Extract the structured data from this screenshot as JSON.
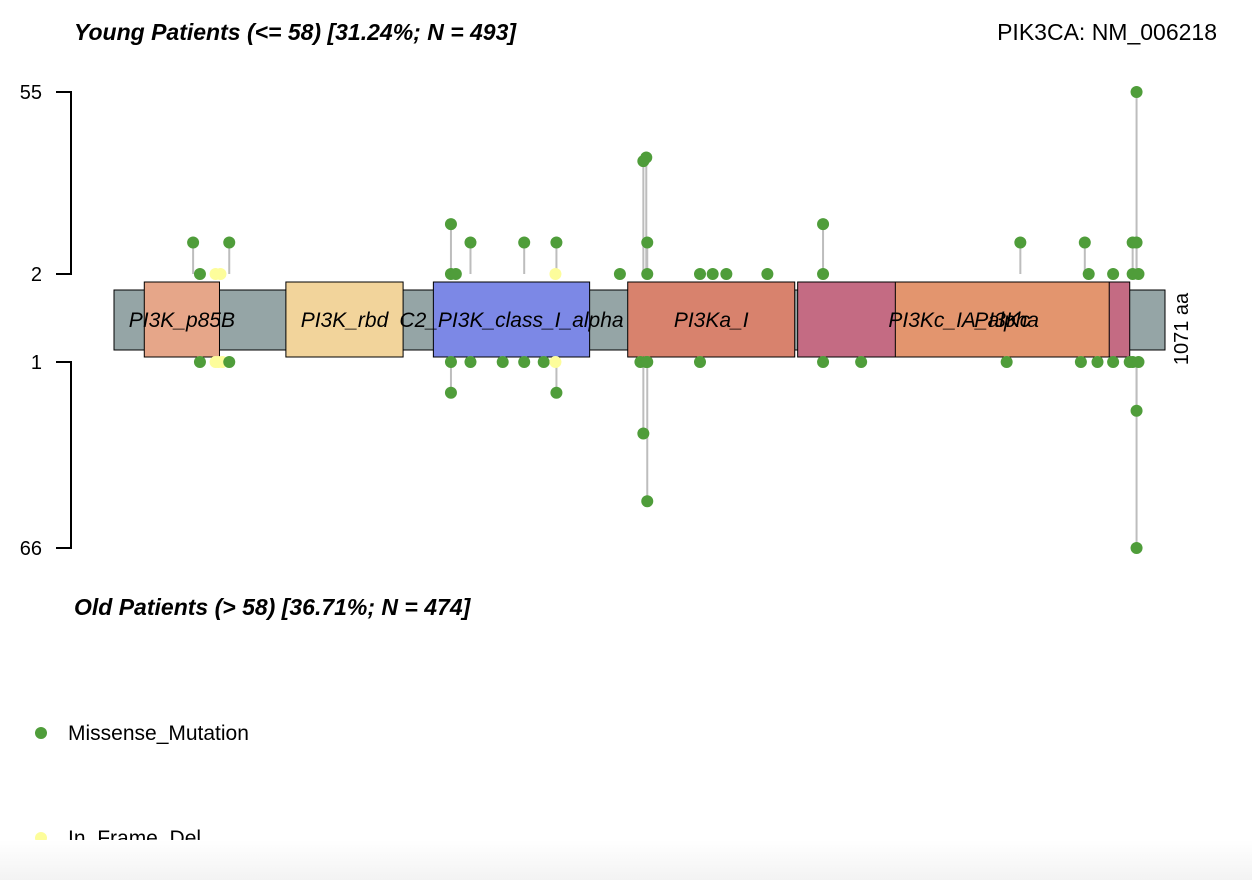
{
  "chart_data": {
    "type": "lollipop",
    "title_top": "Young Patients (<= 58) [31.24%; N = 493]",
    "title_bottom": "Old Patients (> 58) [36.71%; N = 474]",
    "gene_label": "PIK3CA: NM_006218",
    "protein_length_label": "1071 aa",
    "protein_length": 1071,
    "top_axis": {
      "ticks": [
        "55",
        "2"
      ]
    },
    "bottom_axis": {
      "ticks": [
        "1",
        "66"
      ]
    },
    "colors": {
      "backbone": "#95a5a6",
      "missense": "#4f9d3a",
      "in_frame_del": "#fdfd9b",
      "stem": "#bdbdbd"
    },
    "domains": [
      {
        "name": "PI3K_p85B",
        "label": "PI3K_p85B",
        "start": 31,
        "end": 108,
        "color": "#e6a689"
      },
      {
        "name": "PI3K_rbd",
        "label": "PI3K_rbd",
        "start": 176,
        "end": 296,
        "color": "#f2d49b"
      },
      {
        "name": "C2_PI3K_class_I_alpha",
        "label": "C2_PI3K_class_I_alpha",
        "start": 327,
        "end": 487,
        "color": "#7c88e6"
      },
      {
        "name": "PI3Ka_I",
        "label": "PI3Ka_I",
        "start": 526,
        "end": 697,
        "color": "#d8826d"
      },
      {
        "name": "PI3Kc_IA_alpha",
        "label": "PI3Kc_IA_alpha",
        "start": 700,
        "end": 1040,
        "color": "#c46b83"
      },
      {
        "name": "PI3Kc",
        "label": "PI3Kc",
        "start": 800,
        "end": 1019,
        "color": "#e3956e"
      }
    ],
    "legend": [
      {
        "label": "Missense_Mutation",
        "color": "#4f9d3a"
      },
      {
        "label": "In_Frame_Del",
        "color": "#fdfd9b"
      }
    ],
    "mutations_top": [
      {
        "pos": 81,
        "count": 2,
        "type": "Missense_Mutation"
      },
      {
        "pos": 88,
        "count": 1,
        "type": "Missense_Mutation"
      },
      {
        "pos": 104,
        "count": 1,
        "type": "In_Frame_Del"
      },
      {
        "pos": 109,
        "count": 1,
        "type": "In_Frame_Del"
      },
      {
        "pos": 118,
        "count": 2,
        "type": "Missense_Mutation"
      },
      {
        "pos": 345,
        "count": 3,
        "type": "Missense_Mutation"
      },
      {
        "pos": 345,
        "count": 1,
        "type": "Missense_Mutation"
      },
      {
        "pos": 350,
        "count": 1,
        "type": "Missense_Mutation"
      },
      {
        "pos": 365,
        "count": 2,
        "type": "Missense_Mutation"
      },
      {
        "pos": 420,
        "count": 2,
        "type": "Missense_Mutation"
      },
      {
        "pos": 452,
        "count": 1,
        "type": "In_Frame_Del"
      },
      {
        "pos": 453,
        "count": 2,
        "type": "Missense_Mutation"
      },
      {
        "pos": 518,
        "count": 1,
        "type": "Missense_Mutation"
      },
      {
        "pos": 542,
        "count": 12,
        "type": "Missense_Mutation"
      },
      {
        "pos": 545,
        "count": 13,
        "type": "Missense_Mutation"
      },
      {
        "pos": 546,
        "count": 2,
        "type": "Missense_Mutation"
      },
      {
        "pos": 546,
        "count": 1,
        "type": "Missense_Mutation"
      },
      {
        "pos": 600,
        "count": 1,
        "type": "Missense_Mutation"
      },
      {
        "pos": 613,
        "count": 1,
        "type": "Missense_Mutation"
      },
      {
        "pos": 627,
        "count": 1,
        "type": "Missense_Mutation"
      },
      {
        "pos": 669,
        "count": 1,
        "type": "Missense_Mutation"
      },
      {
        "pos": 726,
        "count": 3,
        "type": "Missense_Mutation"
      },
      {
        "pos": 726,
        "count": 1,
        "type": "Missense_Mutation"
      },
      {
        "pos": 928,
        "count": 2,
        "type": "Missense_Mutation"
      },
      {
        "pos": 994,
        "count": 2,
        "type": "Missense_Mutation"
      },
      {
        "pos": 998,
        "count": 1,
        "type": "Missense_Mutation"
      },
      {
        "pos": 1023,
        "count": 1,
        "type": "Missense_Mutation"
      },
      {
        "pos": 1043,
        "count": 2,
        "type": "Missense_Mutation"
      },
      {
        "pos": 1043,
        "count": 1,
        "type": "Missense_Mutation"
      },
      {
        "pos": 1047,
        "count": 55,
        "type": "Missense_Mutation"
      },
      {
        "pos": 1047,
        "count": 2,
        "type": "Missense_Mutation"
      },
      {
        "pos": 1049,
        "count": 1,
        "type": "Missense_Mutation"
      }
    ],
    "mutations_bottom": [
      {
        "pos": 88,
        "count": 1,
        "type": "Missense_Mutation"
      },
      {
        "pos": 104,
        "count": 1,
        "type": "In_Frame_Del"
      },
      {
        "pos": 107,
        "count": 1,
        "type": "In_Frame_Del"
      },
      {
        "pos": 111,
        "count": 1,
        "type": "In_Frame_Del"
      },
      {
        "pos": 118,
        "count": 1,
        "type": "Missense_Mutation"
      },
      {
        "pos": 345,
        "count": 1,
        "type": "Missense_Mutation"
      },
      {
        "pos": 345,
        "count": 2,
        "type": "Missense_Mutation"
      },
      {
        "pos": 365,
        "count": 1,
        "type": "Missense_Mutation"
      },
      {
        "pos": 398,
        "count": 1,
        "type": "Missense_Mutation"
      },
      {
        "pos": 420,
        "count": 1,
        "type": "Missense_Mutation"
      },
      {
        "pos": 440,
        "count": 1,
        "type": "Missense_Mutation"
      },
      {
        "pos": 452,
        "count": 1,
        "type": "In_Frame_Del"
      },
      {
        "pos": 453,
        "count": 2,
        "type": "Missense_Mutation"
      },
      {
        "pos": 539,
        "count": 1,
        "type": "Missense_Mutation"
      },
      {
        "pos": 542,
        "count": 5,
        "type": "Missense_Mutation"
      },
      {
        "pos": 545,
        "count": 1,
        "type": "Missense_Mutation"
      },
      {
        "pos": 546,
        "count": 23,
        "type": "Missense_Mutation"
      },
      {
        "pos": 546,
        "count": 1,
        "type": "Missense_Mutation"
      },
      {
        "pos": 600,
        "count": 1,
        "type": "Missense_Mutation"
      },
      {
        "pos": 726,
        "count": 1,
        "type": "Missense_Mutation"
      },
      {
        "pos": 765,
        "count": 1,
        "type": "Missense_Mutation"
      },
      {
        "pos": 914,
        "count": 1,
        "type": "Missense_Mutation"
      },
      {
        "pos": 990,
        "count": 1,
        "type": "Missense_Mutation"
      },
      {
        "pos": 1007,
        "count": 1,
        "type": "Missense_Mutation"
      },
      {
        "pos": 1023,
        "count": 1,
        "type": "Missense_Mutation"
      },
      {
        "pos": 1040,
        "count": 1,
        "type": "Missense_Mutation"
      },
      {
        "pos": 1043,
        "count": 1,
        "type": "Missense_Mutation"
      },
      {
        "pos": 1047,
        "count": 66,
        "type": "Missense_Mutation"
      },
      {
        "pos": 1047,
        "count": 3,
        "type": "Missense_Mutation"
      },
      {
        "pos": 1049,
        "count": 1,
        "type": "Missense_Mutation"
      }
    ]
  }
}
